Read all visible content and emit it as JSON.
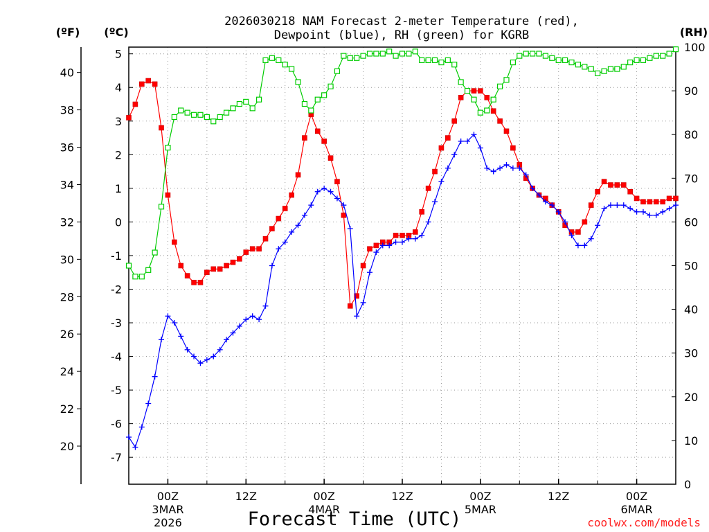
{
  "chart_data": {
    "type": "line",
    "title_line1": "2026030218 NAM Forecast 2-meter Temperature (red),",
    "title_line2": "Dewpoint (blue), RH (green) for KGRB",
    "xlabel": "Forecast Time (UTC)",
    "credit": "coolwx.com/models",
    "units": {
      "fahrenheit": "(ºF)",
      "celsius": "(ºC)",
      "rh": "(RH)"
    },
    "x_range_hours": [
      0,
      84
    ],
    "celsius_range": [
      -7.8,
      5.2
    ],
    "rh_range": [
      0,
      100
    ],
    "fahrenheit_ticks": [
      "20",
      "22",
      "24",
      "26",
      "28",
      "30",
      "32",
      "34",
      "36",
      "38",
      "40"
    ],
    "celsius_ticks": [
      "-7",
      "-6",
      "-5",
      "-4",
      "-3",
      "-2",
      "-1",
      "0",
      "1",
      "2",
      "3",
      "4",
      "5"
    ],
    "rh_ticks": [
      "0",
      "10",
      "20",
      "30",
      "40",
      "50",
      "60",
      "70",
      "80",
      "90",
      "100"
    ],
    "x_ticks": [
      {
        "hour": 6,
        "label": "00Z",
        "sub1": "3MAR",
        "sub2": "2026"
      },
      {
        "hour": 18,
        "label": "12Z",
        "sub1": "",
        "sub2": ""
      },
      {
        "hour": 30,
        "label": "00Z",
        "sub1": "4MAR",
        "sub2": ""
      },
      {
        "hour": 42,
        "label": "12Z",
        "sub1": "",
        "sub2": ""
      },
      {
        "hour": 54,
        "label": "00Z",
        "sub1": "5MAR",
        "sub2": ""
      },
      {
        "hour": 66,
        "label": "12Z",
        "sub1": "",
        "sub2": ""
      },
      {
        "hour": 78,
        "label": "00Z",
        "sub1": "6MAR",
        "sub2": ""
      }
    ],
    "hours": [
      0,
      1,
      2,
      3,
      4,
      5,
      6,
      7,
      8,
      9,
      10,
      11,
      12,
      13,
      14,
      15,
      16,
      17,
      18,
      19,
      20,
      21,
      22,
      23,
      24,
      25,
      26,
      27,
      28,
      29,
      30,
      31,
      32,
      33,
      34,
      35,
      36,
      37,
      38,
      39,
      40,
      41,
      42,
      43,
      44,
      45,
      46,
      47,
      48,
      49,
      50,
      51,
      52,
      53,
      54,
      55,
      56,
      57,
      58,
      59,
      60,
      61,
      62,
      63,
      64,
      65,
      66,
      67,
      68,
      69,
      70,
      71,
      72,
      73,
      74,
      75,
      76,
      77,
      78,
      79,
      80,
      81,
      82,
      83,
      84
    ],
    "series": [
      {
        "name": "2-meter Temperature (°C)",
        "color": "#ff0000",
        "marker": "filled-square",
        "axis": "celsius",
        "values": [
          3.1,
          3.5,
          4.1,
          4.2,
          4.1,
          2.8,
          0.8,
          -0.6,
          -1.3,
          -1.6,
          -1.8,
          -1.8,
          -1.5,
          -1.4,
          -1.4,
          -1.3,
          -1.2,
          -1.1,
          -0.9,
          -0.8,
          -0.8,
          -0.5,
          -0.2,
          0.1,
          0.4,
          0.8,
          1.4,
          2.5,
          3.2,
          2.7,
          2.4,
          1.9,
          1.2,
          0.2,
          -2.5,
          -2.2,
          -1.3,
          -0.8,
          -0.7,
          -0.6,
          -0.6,
          -0.4,
          -0.4,
          -0.4,
          -0.3,
          0.3,
          1.0,
          1.5,
          2.2,
          2.5,
          3.0,
          3.7,
          3.9,
          3.9,
          3.9,
          3.7,
          3.3,
          3.0,
          2.7,
          2.2,
          1.7,
          1.3,
          1.0,
          0.8,
          0.7,
          0.5,
          0.3,
          -0.1,
          -0.3,
          -0.3,
          0.0,
          0.5,
          0.9,
          1.2,
          1.1,
          1.1,
          1.1,
          0.9,
          0.7,
          0.6,
          0.6,
          0.6,
          0.6,
          0.7,
          0.7
        ]
      },
      {
        "name": "Dewpoint (°C)",
        "color": "#0000ff",
        "marker": "plus",
        "axis": "celsius",
        "values": [
          -6.4,
          -6.7,
          -6.1,
          -5.4,
          -4.6,
          -3.5,
          -2.8,
          -3.0,
          -3.4,
          -3.8,
          -4.0,
          -4.2,
          -4.1,
          -4.0,
          -3.8,
          -3.5,
          -3.3,
          -3.1,
          -2.9,
          -2.8,
          -2.9,
          -2.5,
          -1.3,
          -0.8,
          -0.6,
          -0.3,
          -0.1,
          0.2,
          0.5,
          0.9,
          1.0,
          0.9,
          0.7,
          0.5,
          -0.2,
          -2.8,
          -2.4,
          -1.5,
          -0.9,
          -0.7,
          -0.7,
          -0.6,
          -0.6,
          -0.5,
          -0.5,
          -0.4,
          0.0,
          0.6,
          1.2,
          1.6,
          2.0,
          2.4,
          2.4,
          2.6,
          2.2,
          1.6,
          1.5,
          1.6,
          1.7,
          1.6,
          1.6,
          1.4,
          1.0,
          0.8,
          0.6,
          0.5,
          0.3,
          0.0,
          -0.4,
          -0.7,
          -0.7,
          -0.5,
          -0.1,
          0.4,
          0.5,
          0.5,
          0.5,
          0.4,
          0.3,
          0.3,
          0.2,
          0.2,
          0.3,
          0.4,
          0.5
        ]
      },
      {
        "name": "Relative Humidity (%)",
        "color": "#00cc00",
        "marker": "open-square",
        "axis": "rh",
        "values": [
          50,
          47.5,
          47.5,
          49,
          53,
          63.5,
          77,
          84,
          85.5,
          85,
          84.5,
          84.5,
          84,
          83,
          84,
          85,
          86,
          87,
          87.5,
          86,
          88,
          97,
          97.5,
          97,
          96,
          95,
          92,
          87,
          85.5,
          88,
          89,
          91,
          94.5,
          98,
          97.5,
          97.5,
          98,
          98.5,
          98.5,
          98.5,
          99,
          98,
          98.5,
          98.5,
          99,
          97,
          97,
          97,
          96.5,
          97,
          96,
          92,
          90,
          88,
          85,
          85.5,
          88,
          91,
          92.5,
          96.5,
          98,
          98.5,
          98.5,
          98.5,
          98,
          97.5,
          97,
          97,
          96.5,
          96,
          95.5,
          95,
          94,
          94.5,
          95,
          95,
          95.5,
          96.5,
          97,
          97,
          97.5,
          98,
          98,
          98.5,
          99.5
        ]
      }
    ]
  }
}
